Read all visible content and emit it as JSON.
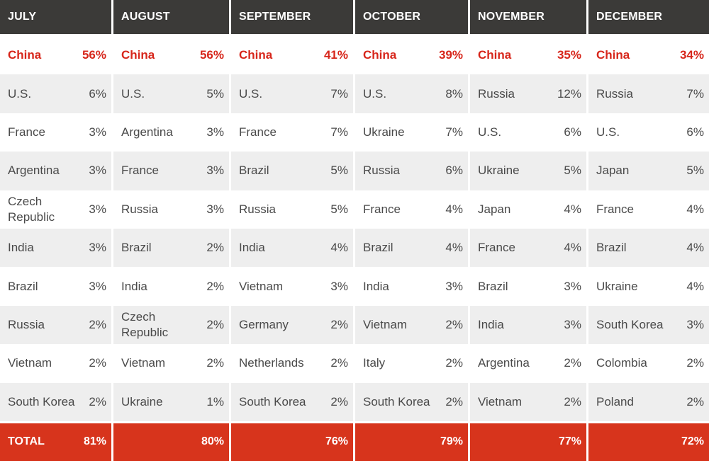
{
  "chart_data": {
    "type": "table",
    "columns": [
      "JULY",
      "AUGUST",
      "SEPTEMBER",
      "OCTOBER",
      "NOVEMBER",
      "DECEMBER"
    ],
    "rows": [
      [
        {
          "country": "China",
          "share": "56%"
        },
        {
          "country": "China",
          "share": "56%"
        },
        {
          "country": "China",
          "share": "41%"
        },
        {
          "country": "China",
          "share": "39%"
        },
        {
          "country": "China",
          "share": "35%"
        },
        {
          "country": "China",
          "share": "34%"
        }
      ],
      [
        {
          "country": "U.S.",
          "share": "6%"
        },
        {
          "country": "U.S.",
          "share": "5%"
        },
        {
          "country": "U.S.",
          "share": "7%"
        },
        {
          "country": "U.S.",
          "share": "8%"
        },
        {
          "country": "Russia",
          "share": "12%"
        },
        {
          "country": "Russia",
          "share": "7%"
        }
      ],
      [
        {
          "country": "France",
          "share": "3%"
        },
        {
          "country": "Argentina",
          "share": "3%"
        },
        {
          "country": "France",
          "share": "7%"
        },
        {
          "country": "Ukraine",
          "share": "7%"
        },
        {
          "country": "U.S.",
          "share": "6%"
        },
        {
          "country": "U.S.",
          "share": "6%"
        }
      ],
      [
        {
          "country": "Argentina",
          "share": "3%"
        },
        {
          "country": "France",
          "share": "3%"
        },
        {
          "country": "Brazil",
          "share": "5%"
        },
        {
          "country": "Russia",
          "share": "6%"
        },
        {
          "country": "Ukraine",
          "share": "5%"
        },
        {
          "country": "Japan",
          "share": "5%"
        }
      ],
      [
        {
          "country": "Czech Republic",
          "share": "3%"
        },
        {
          "country": "Russia",
          "share": "3%"
        },
        {
          "country": "Russia",
          "share": "5%"
        },
        {
          "country": "France",
          "share": "4%"
        },
        {
          "country": "Japan",
          "share": "4%"
        },
        {
          "country": "France",
          "share": "4%"
        }
      ],
      [
        {
          "country": "India",
          "share": "3%"
        },
        {
          "country": "Brazil",
          "share": "2%"
        },
        {
          "country": "India",
          "share": "4%"
        },
        {
          "country": "Brazil",
          "share": "4%"
        },
        {
          "country": "France",
          "share": "4%"
        },
        {
          "country": "Brazil",
          "share": "4%"
        }
      ],
      [
        {
          "country": "Brazil",
          "share": "3%"
        },
        {
          "country": "India",
          "share": "2%"
        },
        {
          "country": "Vietnam",
          "share": "3%"
        },
        {
          "country": "India",
          "share": "3%"
        },
        {
          "country": "Brazil",
          "share": "3%"
        },
        {
          "country": "Ukraine",
          "share": "4%"
        }
      ],
      [
        {
          "country": "Russia",
          "share": "2%"
        },
        {
          "country": "Czech Republic",
          "share": "2%"
        },
        {
          "country": "Germany",
          "share": "2%"
        },
        {
          "country": "Vietnam",
          "share": "2%"
        },
        {
          "country": "India",
          "share": "3%"
        },
        {
          "country": "South Korea",
          "share": "3%"
        }
      ],
      [
        {
          "country": "Vietnam",
          "share": "2%"
        },
        {
          "country": "Vietnam",
          "share": "2%"
        },
        {
          "country": "Netherlands",
          "share": "2%"
        },
        {
          "country": "Italy",
          "share": "2%"
        },
        {
          "country": "Argentina",
          "share": "2%"
        },
        {
          "country": "Colombia",
          "share": "2%"
        }
      ],
      [
        {
          "country": "South Korea",
          "share": "2%"
        },
        {
          "country": "Ukraine",
          "share": "1%"
        },
        {
          "country": "South Korea",
          "share": "2%"
        },
        {
          "country": "South Korea",
          "share": "2%"
        },
        {
          "country": "Vietnam",
          "share": "2%"
        },
        {
          "country": "Poland",
          "share": "2%"
        }
      ]
    ],
    "total_label": "TOTAL",
    "totals": [
      "81%",
      "80%",
      "76%",
      "79%",
      "77%",
      "72%"
    ],
    "highlight_color": "#d7261b",
    "header_color": "#3b3a38",
    "total_row_color": "#d7341c"
  }
}
